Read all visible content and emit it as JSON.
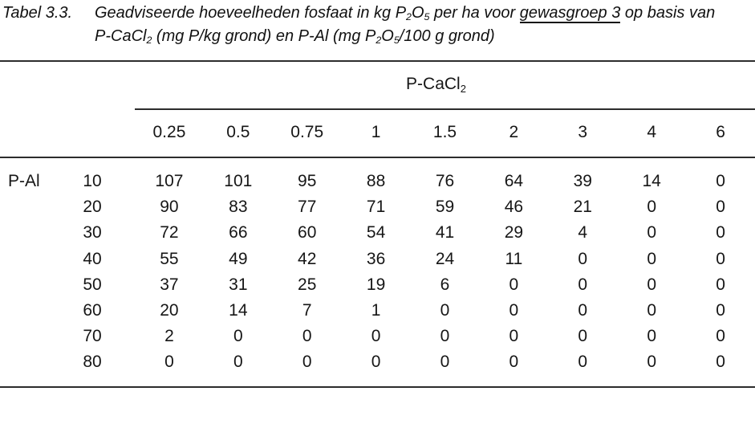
{
  "document": {
    "table_label": "Tabel 3.3.",
    "caption": {
      "line1_part1": "Geadviseerde hoeveelheden fosfaat in kg P",
      "line1_sub1": "2",
      "line1_part2": "O",
      "line1_sub2": "5",
      "line1_part3": " per ha voor ",
      "line1_underlined": "gewasgroep 3",
      "line1_part4": " op basis van",
      "line2_part1": "P-CaCl",
      "line2_sub1": "2",
      "line2_part2": " (mg P/kg grond) en P-Al (mg P",
      "line2_sub2": "2",
      "line2_part3": "O",
      "line2_sub3": "5",
      "line2_part4": "/100 g grond)"
    }
  },
  "table": {
    "column_group_label_base": "P-CaCl",
    "column_group_label_sub": "2",
    "row_group_label": "P-Al",
    "column_headers": [
      "0.25",
      "0.5",
      "0.75",
      "1",
      "1.5",
      "2",
      "3",
      "4",
      "6"
    ],
    "rows": [
      {
        "p_al": "10",
        "values": [
          "107",
          "101",
          "95",
          "88",
          "76",
          "64",
          "39",
          "14",
          "0"
        ]
      },
      {
        "p_al": "20",
        "values": [
          "90",
          "83",
          "77",
          "71",
          "59",
          "46",
          "21",
          "0",
          "0"
        ]
      },
      {
        "p_al": "30",
        "values": [
          "72",
          "66",
          "60",
          "54",
          "41",
          "29",
          "4",
          "0",
          "0"
        ]
      },
      {
        "p_al": "40",
        "values": [
          "55",
          "49",
          "42",
          "36",
          "24",
          "11",
          "0",
          "0",
          "0"
        ]
      },
      {
        "p_al": "50",
        "values": [
          "37",
          "31",
          "25",
          "19",
          "6",
          "0",
          "0",
          "0",
          "0"
        ]
      },
      {
        "p_al": "60",
        "values": [
          "20",
          "14",
          "7",
          "1",
          "0",
          "0",
          "0",
          "0",
          "0"
        ]
      },
      {
        "p_al": "70",
        "values": [
          "2",
          "0",
          "0",
          "0",
          "0",
          "0",
          "0",
          "0",
          "0"
        ]
      },
      {
        "p_al": "80",
        "values": [
          "0",
          "0",
          "0",
          "0",
          "0",
          "0",
          "0",
          "0",
          "0"
        ]
      }
    ]
  }
}
